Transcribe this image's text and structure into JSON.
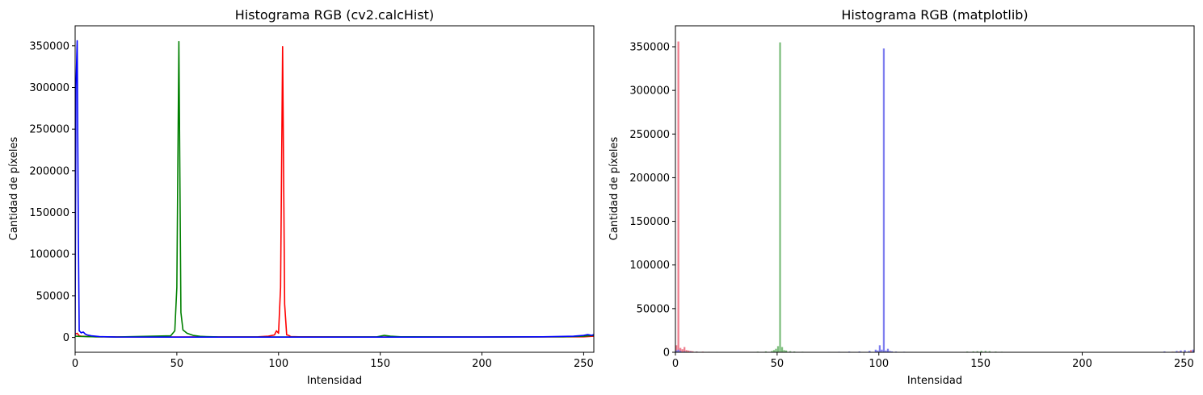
{
  "chart_data": [
    {
      "type": "line",
      "title": "Histograma RGB (cv2.calcHist)",
      "xlabel": "Intensidad",
      "ylabel": "Cantidad de píxeles",
      "xlim": [
        0,
        255
      ],
      "ylim": [
        -17800,
        374000
      ],
      "xticks": [
        0,
        50,
        100,
        150,
        200,
        250
      ],
      "yticks": [
        0,
        50000,
        100000,
        150000,
        200000,
        250000,
        300000,
        350000
      ],
      "grid": false,
      "series_colors": [
        "#ff0000",
        "#008000",
        "#0000ff"
      ],
      "series": [
        {
          "points": [
            [
              0,
              4000
            ],
            [
              1,
              5000
            ],
            [
              2,
              2000
            ],
            [
              3,
              1500
            ],
            [
              5,
              1200
            ],
            [
              10,
              800
            ],
            [
              20,
              600
            ],
            [
              50,
              500
            ],
            [
              90,
              800
            ],
            [
              95,
              1500
            ],
            [
              98,
              3000
            ],
            [
              99,
              8000
            ],
            [
              100,
              5000
            ],
            [
              101,
              60000
            ],
            [
              102,
              349000
            ],
            [
              103,
              40000
            ],
            [
              104,
              3000
            ],
            [
              105,
              2500
            ],
            [
              106,
              1000
            ],
            [
              110,
              800
            ],
            [
              150,
              500
            ],
            [
              200,
              500
            ],
            [
              250,
              800
            ],
            [
              255,
              1500
            ]
          ]
        },
        {
          "points": [
            [
              0,
              1500
            ],
            [
              2,
              1200
            ],
            [
              10,
              800
            ],
            [
              20,
              500
            ],
            [
              47,
              2000
            ],
            [
              49,
              8000
            ],
            [
              50,
              60000
            ],
            [
              51,
              355000
            ],
            [
              52,
              30000
            ],
            [
              53,
              9000
            ],
            [
              55,
              5000
            ],
            [
              58,
              2500
            ],
            [
              62,
              1200
            ],
            [
              70,
              600
            ],
            [
              100,
              500
            ],
            [
              148,
              600
            ],
            [
              150,
              1500
            ],
            [
              152,
              2500
            ],
            [
              155,
              1500
            ],
            [
              160,
              800
            ],
            [
              200,
              500
            ],
            [
              240,
              800
            ],
            [
              250,
              1500
            ],
            [
              255,
              2500
            ]
          ]
        },
        {
          "points": [
            [
              0,
              2000
            ],
            [
              0.4,
              300000
            ],
            [
              1,
              356000
            ],
            [
              1.6,
              120000
            ],
            [
              2,
              8000
            ],
            [
              3,
              5500
            ],
            [
              4,
              6500
            ],
            [
              5,
              4000
            ],
            [
              6,
              3000
            ],
            [
              8,
              2000
            ],
            [
              12,
              1000
            ],
            [
              20,
              500
            ],
            [
              50,
              400
            ],
            [
              100,
              400
            ],
            [
              150,
              400
            ],
            [
              200,
              500
            ],
            [
              230,
              800
            ],
            [
              245,
              1500
            ],
            [
              250,
              2500
            ],
            [
              252,
              3500
            ],
            [
              254,
              2500
            ],
            [
              255,
              3500
            ]
          ]
        }
      ]
    },
    {
      "type": "bar",
      "title": "Histograma RGB (matplotlib)",
      "xlabel": "Intensidad",
      "ylabel": "Cantidad de píxeles",
      "xlim": [
        0,
        255
      ],
      "ylim": [
        0,
        374000
      ],
      "xticks": [
        0,
        50,
        100,
        150,
        200,
        250
      ],
      "yticks": [
        0,
        50000,
        100000,
        150000,
        200000,
        250000,
        300000,
        350000
      ],
      "grid": false,
      "series_colors": [
        "#ee7788",
        "#77bb77",
        "#7777ee"
      ],
      "series": [
        {
          "bars": [
            [
              0,
              8000
            ],
            [
              1,
              356000
            ],
            [
              2,
              5000
            ],
            [
              3,
              3500
            ],
            [
              4,
              6000
            ],
            [
              5,
              2500
            ],
            [
              6,
              2000
            ],
            [
              7,
              1500
            ],
            [
              8,
              1200
            ],
            [
              10,
              900
            ],
            [
              13,
              700
            ],
            [
              16,
              500
            ],
            [
              22,
              400
            ],
            [
              230,
              400
            ],
            [
              235,
              300
            ],
            [
              240,
              500
            ],
            [
              244,
              700
            ],
            [
              247,
              900
            ],
            [
              250,
              1200
            ],
            [
              253,
              2500
            ],
            [
              255,
              3000
            ]
          ]
        },
        {
          "bars": [
            [
              0,
              1500
            ],
            [
              2,
              1000
            ],
            [
              5,
              800
            ],
            [
              10,
              600
            ],
            [
              20,
              500
            ],
            [
              30,
              400
            ],
            [
              40,
              700
            ],
            [
              44,
              1000
            ],
            [
              47,
              1500
            ],
            [
              48,
              2500
            ],
            [
              49,
              4000
            ],
            [
              50,
              7000
            ],
            [
              51,
              355000
            ],
            [
              52,
              6000
            ],
            [
              53,
              2500
            ],
            [
              54,
              2000
            ],
            [
              56,
              1200
            ],
            [
              58,
              900
            ],
            [
              62,
              600
            ],
            [
              70,
              400
            ],
            [
              143,
              800
            ],
            [
              146,
              1000
            ],
            [
              148,
              1200
            ],
            [
              150,
              1500
            ],
            [
              152,
              1500
            ],
            [
              154,
              1200
            ],
            [
              157,
              800
            ],
            [
              160,
              600
            ],
            [
              245,
              600
            ],
            [
              250,
              700
            ],
            [
              255,
              1000
            ]
          ]
        },
        {
          "bars": [
            [
              0,
              2000
            ],
            [
              1,
              3000
            ],
            [
              2,
              1500
            ],
            [
              4,
              1000
            ],
            [
              7,
              800
            ],
            [
              10,
              600
            ],
            [
              15,
              400
            ],
            [
              20,
              300
            ],
            [
              70,
              300
            ],
            [
              75,
              500
            ],
            [
              80,
              600
            ],
            [
              85,
              800
            ],
            [
              90,
              900
            ],
            [
              95,
              1500
            ],
            [
              98,
              3000
            ],
            [
              99,
              2000
            ],
            [
              100,
              8000
            ],
            [
              101,
              3000
            ],
            [
              102,
              348000
            ],
            [
              103,
              2000
            ],
            [
              104,
              4000
            ],
            [
              105,
              1500
            ],
            [
              106,
              1000
            ],
            [
              108,
              800
            ],
            [
              112,
              600
            ],
            [
              116,
              400
            ],
            [
              240,
              1000
            ],
            [
              246,
              1500
            ],
            [
              248,
              2000
            ],
            [
              250,
              2500
            ],
            [
              252,
              1500
            ],
            [
              254,
              3000
            ],
            [
              255,
              3000
            ]
          ]
        }
      ]
    }
  ]
}
